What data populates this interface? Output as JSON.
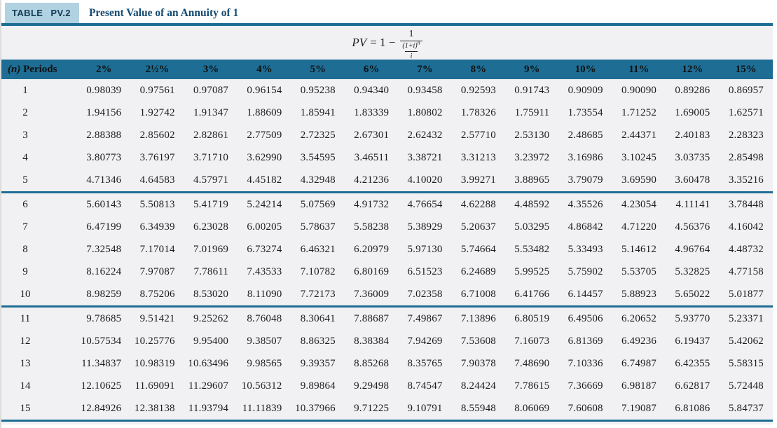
{
  "header": {
    "badge": "TABLE PV.2",
    "title": "Present Value of an Annuity of 1"
  },
  "formula": {
    "lhs": "PV",
    "rhs_prefix": "= 1 −",
    "numerator": "1",
    "denominator_base": "(1+i)",
    "denominator_exponent": "n",
    "denominator_divisor": "i"
  },
  "table": {
    "periods_header_prefix": "(n)",
    "periods_header_label": "Periods",
    "rate_columns": [
      "2%",
      "2½%",
      "3%",
      "4%",
      "5%",
      "6%",
      "7%",
      "8%",
      "9%",
      "10%",
      "11%",
      "12%",
      "15%"
    ],
    "rows": [
      [
        "1",
        "0.98039",
        "0.97561",
        "0.97087",
        "0.96154",
        "0.95238",
        "0.94340",
        "0.93458",
        "0.92593",
        "0.91743",
        "0.90909",
        "0.90090",
        "0.89286",
        "0.86957"
      ],
      [
        "2",
        "1.94156",
        "1.92742",
        "1.91347",
        "1.88609",
        "1.85941",
        "1.83339",
        "1.80802",
        "1.78326",
        "1.75911",
        "1.73554",
        "1.71252",
        "1.69005",
        "1.62571"
      ],
      [
        "3",
        "2.88388",
        "2.85602",
        "2.82861",
        "2.77509",
        "2.72325",
        "2.67301",
        "2.62432",
        "2.57710",
        "2.53130",
        "2.48685",
        "2.44371",
        "2.40183",
        "2.28323"
      ],
      [
        "4",
        "3.80773",
        "3.76197",
        "3.71710",
        "3.62990",
        "3.54595",
        "3.46511",
        "3.38721",
        "3.31213",
        "3.23972",
        "3.16986",
        "3.10245",
        "3.03735",
        "2.85498"
      ],
      [
        "5",
        "4.71346",
        "4.64583",
        "4.57971",
        "4.45182",
        "4.32948",
        "4.21236",
        "4.10020",
        "3.99271",
        "3.88965",
        "3.79079",
        "3.69590",
        "3.60478",
        "3.35216"
      ],
      [
        "6",
        "5.60143",
        "5.50813",
        "5.41719",
        "5.24214",
        "5.07569",
        "4.91732",
        "4.76654",
        "4.62288",
        "4.48592",
        "4.35526",
        "4.23054",
        "4.11141",
        "3.78448"
      ],
      [
        "7",
        "6.47199",
        "6.34939",
        "6.23028",
        "6.00205",
        "5.78637",
        "5.58238",
        "5.38929",
        "5.20637",
        "5.03295",
        "4.86842",
        "4.71220",
        "4.56376",
        "4.16042"
      ],
      [
        "8",
        "7.32548",
        "7.17014",
        "7.01969",
        "6.73274",
        "6.46321",
        "6.20979",
        "5.97130",
        "5.74664",
        "5.53482",
        "5.33493",
        "5.14612",
        "4.96764",
        "4.48732"
      ],
      [
        "9",
        "8.16224",
        "7.97087",
        "7.78611",
        "7.43533",
        "7.10782",
        "6.80169",
        "6.51523",
        "6.24689",
        "5.99525",
        "5.75902",
        "5.53705",
        "5.32825",
        "4.77158"
      ],
      [
        "10",
        "8.98259",
        "8.75206",
        "8.53020",
        "8.11090",
        "7.72173",
        "7.36009",
        "7.02358",
        "6.71008",
        "6.41766",
        "6.14457",
        "5.88923",
        "5.65022",
        "5.01877"
      ],
      [
        "11",
        "9.78685",
        "9.51421",
        "9.25262",
        "8.76048",
        "8.30641",
        "7.88687",
        "7.49867",
        "7.13896",
        "6.80519",
        "6.49506",
        "6.20652",
        "5.93770",
        "5.23371"
      ],
      [
        "12",
        "10.57534",
        "10.25776",
        "9.95400",
        "9.38507",
        "8.86325",
        "8.38384",
        "7.94269",
        "7.53608",
        "7.16073",
        "6.81369",
        "6.49236",
        "6.19437",
        "5.42062"
      ],
      [
        "13",
        "11.34837",
        "10.98319",
        "10.63496",
        "9.98565",
        "9.39357",
        "8.85268",
        "8.35765",
        "7.90378",
        "7.48690",
        "7.10336",
        "6.74987",
        "6.42355",
        "5.58315"
      ],
      [
        "14",
        "12.10625",
        "11.69091",
        "11.29607",
        "10.56312",
        "9.89864",
        "9.29498",
        "8.74547",
        "8.24424",
        "7.78615",
        "7.36669",
        "6.98187",
        "6.62817",
        "5.72448"
      ],
      [
        "15",
        "12.84926",
        "12.38138",
        "11.93794",
        "11.11839",
        "10.37966",
        "9.71225",
        "9.10791",
        "8.55948",
        "8.06069",
        "7.60608",
        "7.19087",
        "6.81086",
        "5.84737"
      ]
    ],
    "group_breaks_after": [
      5,
      10,
      15
    ]
  },
  "colors": {
    "accent_teal": "#1d6d94",
    "badge_bg": "#b0d2e1",
    "badge_text": "#123c55",
    "title_text": "#154a70",
    "band_bg": "#f1f1f3",
    "number_text": "#1c1c1c"
  }
}
